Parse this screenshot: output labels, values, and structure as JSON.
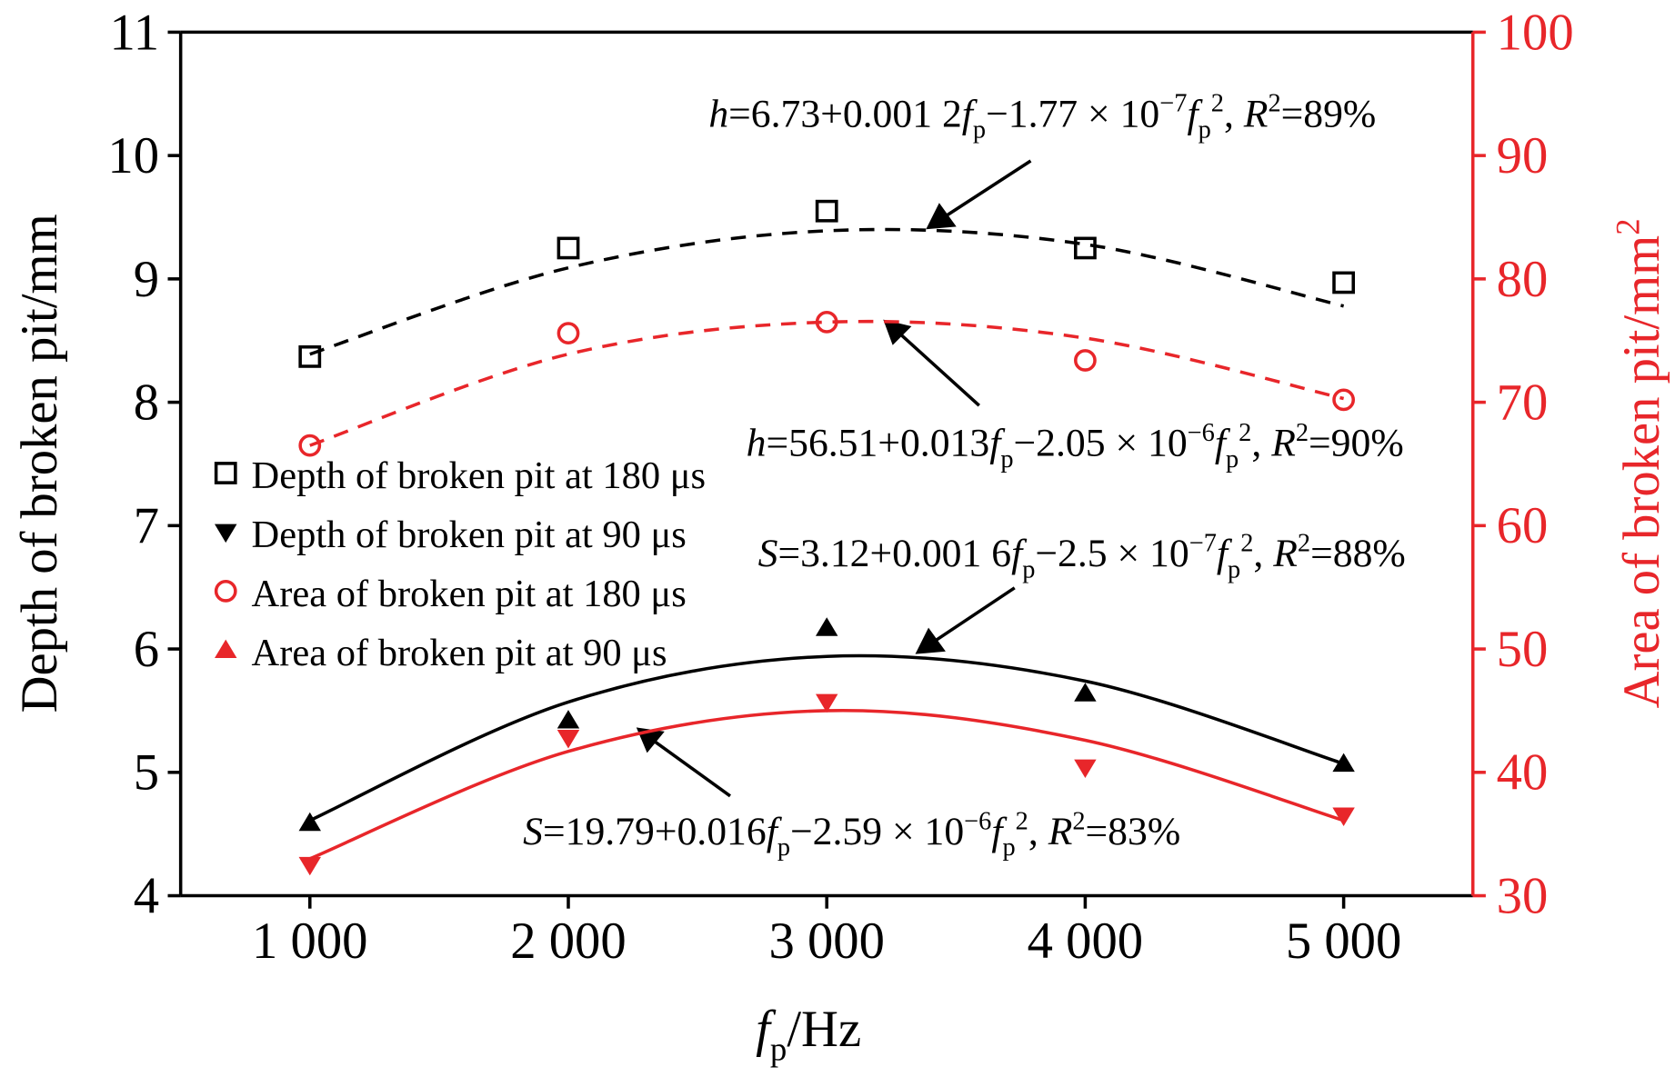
{
  "chart_data": {
    "type": "scatter",
    "x": [
      1000,
      2000,
      3000,
      4000,
      5000
    ],
    "xlim": [
      500,
      5500
    ],
    "xticks": [
      {
        "value": 1000,
        "label": "1 000"
      },
      {
        "value": 2000,
        "label": "2 000"
      },
      {
        "value": 3000,
        "label": "3 000"
      },
      {
        "value": 4000,
        "label": "4 000"
      },
      {
        "value": 5000,
        "label": "5 000"
      }
    ],
    "ylim": [
      4,
      11
    ],
    "yticks": [
      4,
      5,
      6,
      7,
      8,
      9,
      10,
      11
    ],
    "y2lim": [
      30,
      100
    ],
    "y2ticks": [
      30,
      40,
      50,
      60,
      70,
      80,
      90,
      100
    ],
    "xlabel": [
      {
        "text": "f",
        "style": "italic"
      },
      {
        "text": "p",
        "style": "sub"
      },
      {
        "text": "/Hz"
      }
    ],
    "ylabel": [
      {
        "text": "Depth of broken pit/mm"
      }
    ],
    "y2label": [
      {
        "text": "Area of broken pit/mm"
      },
      {
        "text": "2",
        "style": "sup"
      }
    ],
    "y2color": "#e8262a",
    "legend_position": "left",
    "series": [
      {
        "name": "Depth of broken pit at 180 μs",
        "color": "#000000",
        "marker": "square",
        "legend_marker": "square",
        "values": [
          8.37,
          9.25,
          9.55,
          9.25,
          8.97
        ],
        "trend": [
          8.39,
          9.09,
          9.39,
          9.28,
          8.78
        ],
        "trend_style": "dashed"
      },
      {
        "name": "Depth of broken pit at 90 μs",
        "color": "#000000",
        "marker": "triangle-up",
        "legend_marker": "triangle-down",
        "values": [
          4.59,
          5.42,
          6.17,
          5.64,
          5.07
        ],
        "trend": [
          4.61,
          5.57,
          5.94,
          5.74,
          5.07
        ],
        "trend_style": "solid"
      },
      {
        "name": "Area of broken pit at 180 μs",
        "color": "#e8262a",
        "marker": "circle",
        "legend_marker": "circle",
        "axis": "y2",
        "values": [
          66.5,
          75.6,
          76.5,
          73.4,
          70.2
        ],
        "trend": [
          66.5,
          73.9,
          76.5,
          75.2,
          70.3
        ],
        "trend_style": "dashed"
      },
      {
        "name": "Area of broken pit at 90 μs",
        "color": "#e8262a",
        "marker": "triangle-down",
        "legend_marker": "triangle-up",
        "axis": "y2",
        "values": [
          32.5,
          42.8,
          45.7,
          40.4,
          36.5
        ],
        "trend": [
          33.0,
          41.7,
          45.0,
          42.6,
          36.1
        ],
        "trend_style": "solid"
      }
    ],
    "annotations": [
      [
        {
          "text": "h",
          "style": "italic"
        },
        {
          "text": "=6.73+0.001 2"
        },
        {
          "text": "f",
          "style": "italic"
        },
        {
          "text": "p",
          "style": "sub"
        },
        {
          "text": "−1.77 × 10"
        },
        {
          "text": "−7",
          "style": "sup"
        },
        {
          "text": "f",
          "style": "italic"
        },
        {
          "text": "p",
          "style": "sub"
        },
        {
          "text": "2",
          "style": "sup"
        },
        {
          "text": ", "
        },
        {
          "text": "R",
          "style": "italic"
        },
        {
          "text": "2",
          "style": "sup"
        },
        {
          "text": "=89%"
        }
      ],
      [
        {
          "text": "h",
          "style": "italic"
        },
        {
          "text": "=56.51+0.013"
        },
        {
          "text": "f",
          "style": "italic"
        },
        {
          "text": "p",
          "style": "sub"
        },
        {
          "text": "−2.05 × 10"
        },
        {
          "text": "−6",
          "style": "sup"
        },
        {
          "text": "f",
          "style": "italic"
        },
        {
          "text": "p",
          "style": "sub"
        },
        {
          "text": "2",
          "style": "sup"
        },
        {
          "text": ", "
        },
        {
          "text": "R",
          "style": "italic"
        },
        {
          "text": "2",
          "style": "sup"
        },
        {
          "text": "=90%"
        }
      ],
      [
        {
          "text": "S",
          "style": "italic"
        },
        {
          "text": "=3.12+0.001 6"
        },
        {
          "text": "f",
          "style": "italic"
        },
        {
          "text": "p",
          "style": "sub"
        },
        {
          "text": "−2.5 × 10"
        },
        {
          "text": "−7",
          "style": "sup"
        },
        {
          "text": "f",
          "style": "italic"
        },
        {
          "text": "p",
          "style": "sub"
        },
        {
          "text": "2",
          "style": "sup"
        },
        {
          "text": ", "
        },
        {
          "text": "R",
          "style": "italic"
        },
        {
          "text": "2",
          "style": "sup"
        },
        {
          "text": "=88%"
        }
      ],
      [
        {
          "text": "S",
          "style": "italic"
        },
        {
          "text": "=19.79+0.016"
        },
        {
          "text": "f",
          "style": "italic"
        },
        {
          "text": "p",
          "style": "sub"
        },
        {
          "text": "−2.59 × 10"
        },
        {
          "text": "−6",
          "style": "sup"
        },
        {
          "text": "f",
          "style": "italic"
        },
        {
          "text": "p",
          "style": "sub"
        },
        {
          "text": "2",
          "style": "sup"
        },
        {
          "text": ", "
        },
        {
          "text": "R",
          "style": "italic"
        },
        {
          "text": "2",
          "style": "sup"
        },
        {
          "text": "=83%"
        }
      ]
    ]
  }
}
